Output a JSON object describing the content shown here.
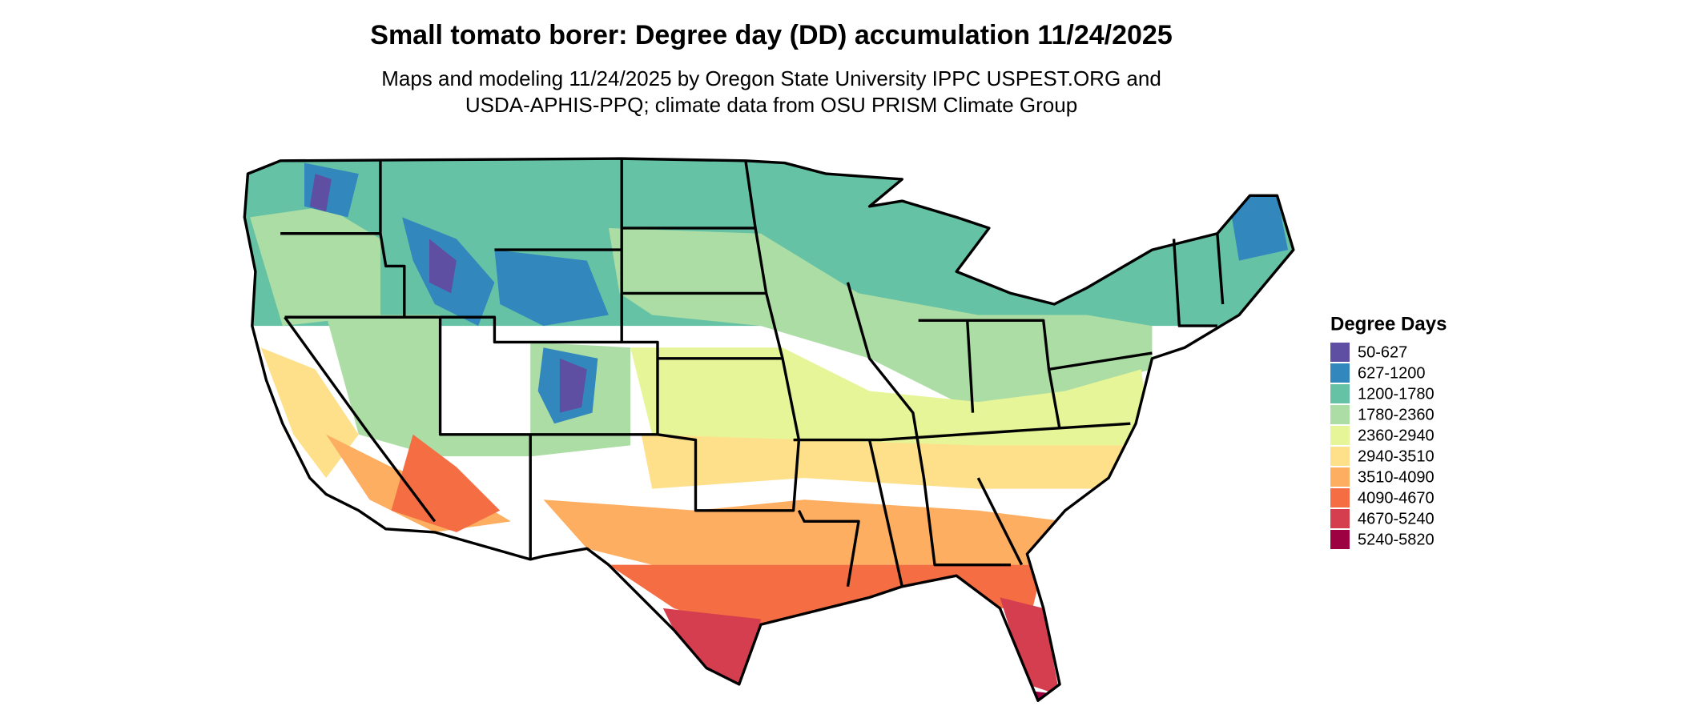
{
  "title": "Small tomato borer: Degree day (DD) accumulation 11/24/2025",
  "subtitle": [
    "Maps and modeling 11/24/2025 by Oregon State University IPPC USPEST.ORG and",
    "USDA-APHIS-PPQ; climate data from OSU PRISM Climate Group"
  ],
  "legend": {
    "title": "Degree Days",
    "items": [
      {
        "label": "50-627",
        "color": "#5E4FA2"
      },
      {
        "label": "627-1200",
        "color": "#3288BD"
      },
      {
        "label": "1200-1780",
        "color": "#66C2A5"
      },
      {
        "label": "1780-2360",
        "color": "#ABDDA4"
      },
      {
        "label": "2360-2940",
        "color": "#E6F598"
      },
      {
        "label": "2940-3510",
        "color": "#FEE08B"
      },
      {
        "label": "3510-4090",
        "color": "#FDAE61"
      },
      {
        "label": "4090-4670",
        "color": "#F46D43"
      },
      {
        "label": "4670-5240",
        "color": "#D53E4F"
      },
      {
        "label": "5240-5820",
        "color": "#9E0142"
      }
    ]
  }
}
